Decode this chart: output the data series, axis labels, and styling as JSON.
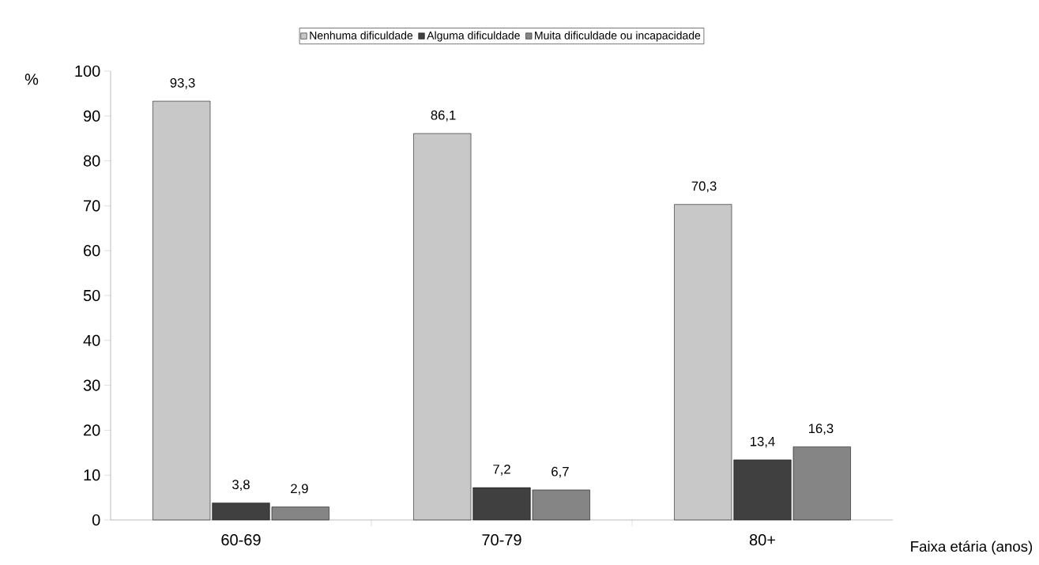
{
  "chart_data": {
    "type": "bar",
    "ylabel": "%",
    "xlabel": "Faixa etária (anos)",
    "categories": [
      "60-69",
      "70-79",
      "80+"
    ],
    "series": [
      {
        "name": "Nenhuma dificuldade",
        "color": "#c8c8c8",
        "values": [
          93.3,
          86.1,
          70.3
        ],
        "value_labels": [
          "93,3",
          "86,1",
          "70,3"
        ]
      },
      {
        "name": "Alguma dificuldade",
        "color": "#404040",
        "values": [
          3.8,
          7.2,
          13.4
        ],
        "value_labels": [
          "3,8",
          "7,2",
          "13,4"
        ]
      },
      {
        "name": "Muita dificuldade ou incapacidade",
        "color": "#858585",
        "values": [
          2.9,
          6.7,
          16.3
        ],
        "value_labels": [
          "2,9",
          "6,7",
          "16,3"
        ]
      }
    ],
    "ylim": [
      0,
      100
    ],
    "yticks": [
      0,
      10,
      20,
      30,
      40,
      50,
      60,
      70,
      80,
      90,
      100
    ],
    "legend": "top",
    "grid": false
  }
}
